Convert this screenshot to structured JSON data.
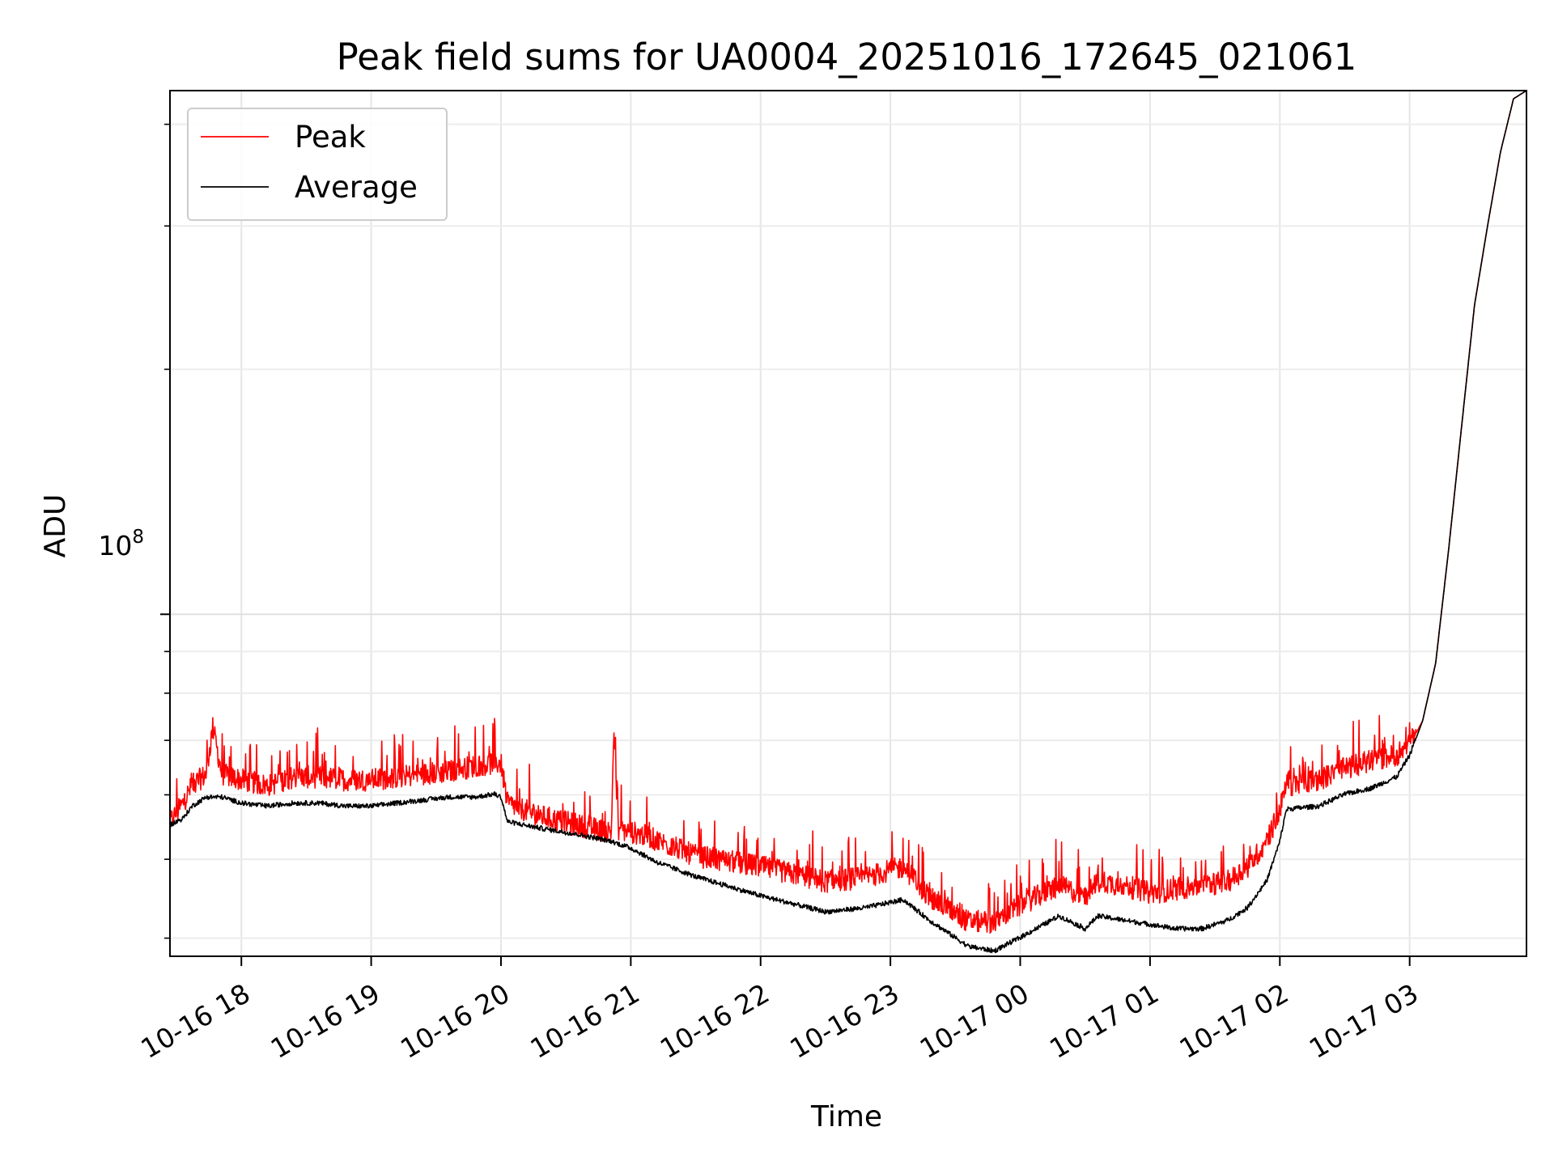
{
  "chart_data": {
    "type": "line",
    "title": "Peak field sums for UA0004_20251016_172645_021061",
    "xlabel": "Time",
    "ylabel": "ADU",
    "yscale": "log",
    "x_unit": "hours since 10-16 17:00",
    "xlim": [
      0.45,
      10.9
    ],
    "ylim": [
      38000000,
      440000000
    ],
    "y_major_tick": {
      "value": 100000000,
      "label_base": "10",
      "label_exp": "8"
    },
    "y_minor_ticks": [
      40000000,
      50000000,
      60000000,
      70000000,
      80000000,
      90000000,
      200000000,
      300000000,
      400000000
    ],
    "x_ticks": [
      {
        "x": 1,
        "label": "10-16 18"
      },
      {
        "x": 2,
        "label": "10-16 19"
      },
      {
        "x": 3,
        "label": "10-16 20"
      },
      {
        "x": 4,
        "label": "10-16 21"
      },
      {
        "x": 5,
        "label": "10-16 22"
      },
      {
        "x": 6,
        "label": "10-16 23"
      },
      {
        "x": 7,
        "label": "10-17 00"
      },
      {
        "x": 8,
        "label": "10-17 01"
      },
      {
        "x": 9,
        "label": "10-17 02"
      },
      {
        "x": 10,
        "label": "10-17 03"
      }
    ],
    "grid": true,
    "legend": {
      "position": "top-left"
    },
    "series": [
      {
        "name": "Peak",
        "color": "#ff0000",
        "x": [
          0.45,
          0.55,
          0.62,
          0.73,
          0.78,
          0.85,
          1.0,
          1.2,
          1.4,
          1.6,
          1.8,
          2.0,
          2.2,
          2.4,
          2.6,
          2.8,
          2.95,
          3.0,
          3.05,
          3.3,
          3.6,
          3.85,
          3.87,
          3.9,
          4.1,
          4.5,
          5.0,
          5.5,
          5.8,
          6.1,
          6.3,
          6.6,
          6.8,
          7.0,
          7.3,
          7.5,
          7.6,
          7.8,
          8.0,
          8.2,
          8.4,
          8.6,
          8.75,
          8.9,
          9.0,
          9.05,
          9.3,
          9.5,
          9.7,
          9.9,
          10.0,
          10.1,
          10.2,
          10.3,
          10.4,
          10.5,
          10.6,
          10.7,
          10.8,
          10.9
        ],
        "y": [
          55000000,
          58000000,
          61000000,
          63000000,
          72000000,
          63000000,
          62000000,
          61000000,
          62500000,
          62500000,
          62000000,
          62000000,
          62500000,
          63000000,
          63500000,
          64500000,
          65000000,
          65000000,
          58000000,
          56000000,
          54500000,
          53500000,
          72000000,
          54000000,
          53000000,
          50000000,
          48500000,
          46500000,
          47000000,
          48500000,
          44500000,
          41500000,
          41500000,
          43500000,
          46000000,
          44500000,
          46500000,
          46000000,
          45000000,
          45500000,
          46000000,
          46500000,
          48500000,
          52000000,
          57000000,
          61000000,
          62000000,
          64000000,
          65500000,
          66500000,
          69000000,
          74000000,
          87000000,
          120000000,
          170000000,
          240000000,
          300000000,
          370000000,
          430000000,
          440000000
        ]
      },
      {
        "name": "Average",
        "color": "#000000",
        "x": [
          0.45,
          0.55,
          0.62,
          0.73,
          0.85,
          1.0,
          1.2,
          1.4,
          1.6,
          1.8,
          2.0,
          2.2,
          2.4,
          2.6,
          2.8,
          2.95,
          3.0,
          3.05,
          3.3,
          3.6,
          3.85,
          4.0,
          4.2,
          4.5,
          5.0,
          5.5,
          5.8,
          6.1,
          6.3,
          6.6,
          6.8,
          7.0,
          7.3,
          7.5,
          7.6,
          7.8,
          8.0,
          8.2,
          8.4,
          8.6,
          8.75,
          8.9,
          9.0,
          9.05,
          9.3,
          9.5,
          9.7,
          9.9,
          10.0,
          10.1,
          10.2,
          10.3,
          10.4,
          10.5,
          10.6,
          10.7,
          10.8,
          10.9
        ],
        "y": [
          55000000,
          56000000,
          58000000,
          59500000,
          59500000,
          58500000,
          58000000,
          58500000,
          58500000,
          58000000,
          58000000,
          58500000,
          59000000,
          59500000,
          59500000,
          60000000,
          59500000,
          55500000,
          54500000,
          53500000,
          52500000,
          51500000,
          49500000,
          47500000,
          45000000,
          43000000,
          43500000,
          44500000,
          42000000,
          39000000,
          38500000,
          40000000,
          42500000,
          41000000,
          42500000,
          42000000,
          41500000,
          41000000,
          41000000,
          42000000,
          43500000,
          47000000,
          52500000,
          57500000,
          58000000,
          60000000,
          61000000,
          63000000,
          67000000,
          74000000,
          87000000,
          120000000,
          170000000,
          240000000,
          300000000,
          370000000,
          430000000,
          440000000
        ]
      }
    ]
  }
}
